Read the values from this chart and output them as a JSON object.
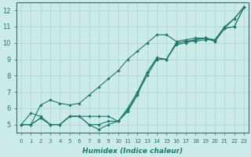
{
  "xlabel": "Humidex (Indice chaleur)",
  "bg_color": "#cceae7",
  "grid_color": "#aad4d0",
  "line_color": "#1a7a6e",
  "xlim": [
    -0.5,
    23.5
  ],
  "ylim": [
    4.5,
    12.5
  ],
  "xticks": [
    0,
    1,
    2,
    3,
    4,
    5,
    6,
    7,
    8,
    9,
    10,
    11,
    12,
    13,
    14,
    15,
    16,
    17,
    18,
    19,
    20,
    21,
    22,
    23
  ],
  "yticks": [
    5,
    6,
    7,
    8,
    9,
    10,
    11,
    12
  ],
  "lines": [
    [
      5.0,
      5.7,
      5.5,
      5.0,
      5.0,
      5.5,
      5.5,
      5.5,
      5.5,
      5.5,
      5.2,
      6.0,
      7.0,
      8.2,
      9.0,
      9.0,
      10.0,
      10.1,
      10.1,
      10.2,
      10.2,
      11.0,
      11.5,
      12.2
    ],
    [
      5.0,
      5.0,
      5.4,
      5.0,
      5.0,
      5.5,
      5.5,
      5.0,
      5.0,
      5.2,
      5.2,
      5.8,
      6.8,
      8.2,
      9.1,
      9.0,
      9.9,
      10.0,
      10.2,
      10.3,
      10.1,
      10.9,
      11.0,
      12.2
    ],
    [
      5.0,
      5.0,
      5.4,
      5.0,
      5.0,
      5.5,
      5.5,
      5.0,
      4.7,
      5.0,
      5.2,
      5.9,
      6.9,
      8.0,
      9.0,
      9.0,
      10.0,
      10.1,
      10.2,
      10.3,
      10.1,
      10.9,
      11.0,
      12.2
    ],
    [
      5.0,
      5.0,
      6.2,
      6.5,
      6.3,
      6.2,
      6.3,
      6.8,
      7.3,
      7.8,
      8.3,
      9.0,
      9.5,
      10.0,
      10.5,
      10.5,
      10.1,
      10.2,
      10.3,
      10.3,
      10.2,
      10.9,
      11.5,
      12.2
    ]
  ]
}
